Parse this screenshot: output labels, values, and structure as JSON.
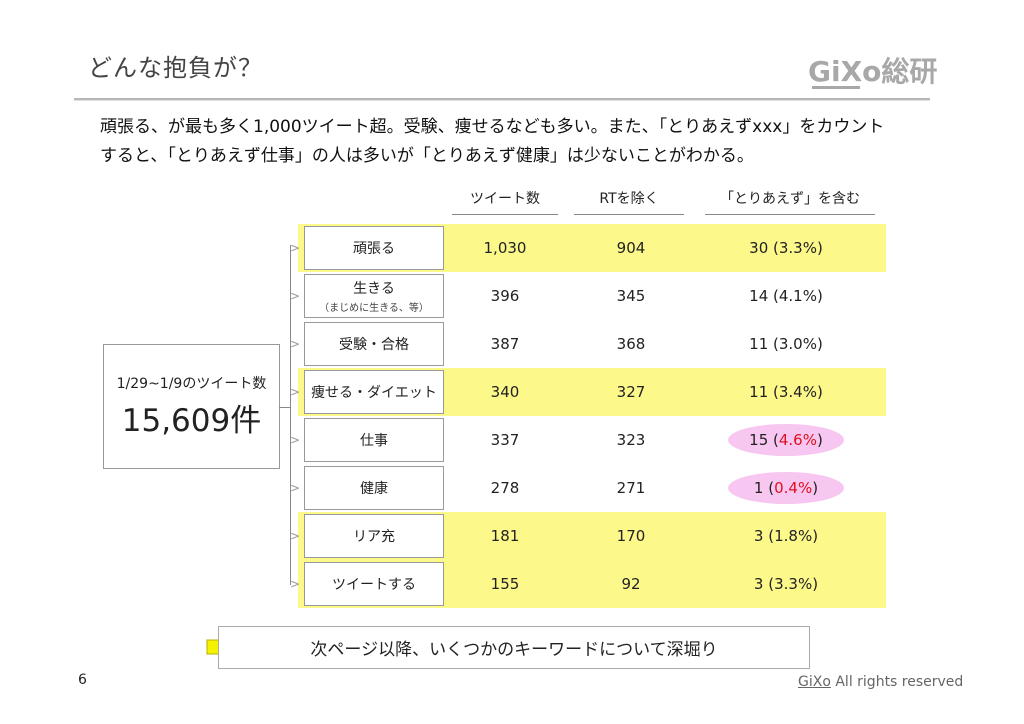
{
  "header": {
    "title": "どんな抱負が？",
    "logo": "GiXo総研"
  },
  "description": {
    "line1": "頑張る、が最も多く1,000ツイート超。受験、痩せるなども多い。また、「とりあえずxxx」をカウント",
    "line2": "すると、「とりあえず仕事」の人は多いが「とりあえず健康」は少ないことがわかる。"
  },
  "total": {
    "caption": "1/29~1/9のツイート数",
    "value": "15,609件"
  },
  "table": {
    "columns": [
      "ツイート数",
      "RTを除く",
      "「とりあえず」を含む"
    ],
    "rows": [
      {
        "label": "頑張る",
        "sub": "",
        "tweets": "1,030",
        "excl_rt": "904",
        "toriaezu_n": "30",
        "toriaezu_pct": "3.3%",
        "highlight": true,
        "emphasis": false
      },
      {
        "label": "生きる",
        "sub": "（まじめに生きる、等）",
        "tweets": "396",
        "excl_rt": "345",
        "toriaezu_n": "14",
        "toriaezu_pct": "4.1%",
        "highlight": false,
        "emphasis": false
      },
      {
        "label": "受験・合格",
        "sub": "",
        "tweets": "387",
        "excl_rt": "368",
        "toriaezu_n": "11",
        "toriaezu_pct": "3.0%",
        "highlight": false,
        "emphasis": false
      },
      {
        "label": "痩せる・ダイエット",
        "sub": "",
        "tweets": "340",
        "excl_rt": "327",
        "toriaezu_n": "11",
        "toriaezu_pct": "3.4%",
        "highlight": true,
        "emphasis": false
      },
      {
        "label": "仕事",
        "sub": "",
        "tweets": "337",
        "excl_rt": "323",
        "toriaezu_n": "15",
        "toriaezu_pct": "4.6%",
        "highlight": false,
        "emphasis": true
      },
      {
        "label": "健康",
        "sub": "",
        "tweets": "278",
        "excl_rt": "271",
        "toriaezu_n": "1",
        "toriaezu_pct": "0.4%",
        "highlight": false,
        "emphasis": true
      },
      {
        "label": "リア充",
        "sub": "",
        "tweets": "181",
        "excl_rt": "170",
        "toriaezu_n": "3",
        "toriaezu_pct": "1.8%",
        "highlight": true,
        "emphasis": false
      },
      {
        "label": "ツイートする",
        "sub": "",
        "tweets": "155",
        "excl_rt": "92",
        "toriaezu_n": "3",
        "toriaezu_pct": "3.3%",
        "highlight": true,
        "emphasis": false
      }
    ]
  },
  "next": {
    "text": "次ページ以降、いくつかのキーワードについて深堀り"
  },
  "footer": {
    "page_number": "6",
    "brand": "GiXo",
    "rights": " All rights reserved"
  },
  "colors": {
    "highlight": "#fcf88a",
    "emphasis_oval": "#f7c6f1",
    "emphasis_text": "#e0101e",
    "arrow_fill": "#f5f200"
  }
}
